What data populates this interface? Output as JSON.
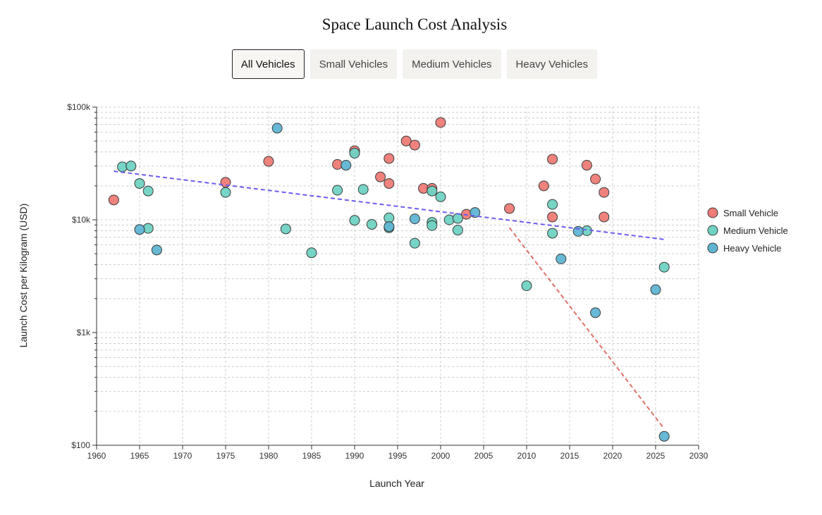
{
  "title": "Space Launch Cost Analysis",
  "filters": [
    {
      "label": "All Vehicles",
      "active": true
    },
    {
      "label": "Small Vehicles",
      "active": false
    },
    {
      "label": "Medium Vehicles",
      "active": false
    },
    {
      "label": "Heavy Vehicles",
      "active": false
    }
  ],
  "colors": {
    "small": "#ee7b76",
    "medium": "#6fd3c3",
    "heavy": "#5fb5d3",
    "trend_all": "#6b5cf0",
    "trend_small": "#e07068",
    "grid": "#cccccc",
    "point_stroke": "#3a3a3a"
  },
  "chart_data": {
    "type": "scatter",
    "title": "Space Launch Cost Analysis",
    "xlabel": "Launch Year",
    "ylabel": "Launch Cost per Kilogram (USD)",
    "xlim": [
      1960,
      2030
    ],
    "ylim": [
      100,
      100000
    ],
    "yscale": "log",
    "xticks": [
      1960,
      1965,
      1970,
      1975,
      1980,
      1985,
      1990,
      1995,
      2000,
      2005,
      2010,
      2015,
      2020,
      2025,
      2030
    ],
    "yticks": [
      {
        "value": 100,
        "label": "$100"
      },
      {
        "value": 1000,
        "label": "$1k"
      },
      {
        "value": 10000,
        "label": "$10k"
      },
      {
        "value": 100000,
        "label": "$100k"
      }
    ],
    "legend_position": "right",
    "series": [
      {
        "name": "Small Vehicle",
        "key": "small",
        "points": [
          [
            1962,
            15000
          ],
          [
            1975,
            21500
          ],
          [
            1980,
            33000
          ],
          [
            1988,
            31000
          ],
          [
            1990,
            41000
          ],
          [
            1993,
            24000
          ],
          [
            1994,
            35000
          ],
          [
            1994,
            21000
          ],
          [
            1996,
            50000
          ],
          [
            1997,
            46000
          ],
          [
            1998,
            19000
          ],
          [
            1999,
            19000
          ],
          [
            2000,
            73000
          ],
          [
            2003,
            11200
          ],
          [
            2008,
            12600
          ],
          [
            2012,
            20000
          ],
          [
            2013,
            34500
          ],
          [
            2013,
            10600
          ],
          [
            2017,
            30500
          ],
          [
            2018,
            23000
          ],
          [
            2019,
            17500
          ],
          [
            2019,
            10600
          ]
        ]
      },
      {
        "name": "Medium Vehicle",
        "key": "medium",
        "points": [
          [
            1963,
            29500
          ],
          [
            1964,
            30000
          ],
          [
            1965,
            21000
          ],
          [
            1966,
            18000
          ],
          [
            1966,
            8400
          ],
          [
            1975,
            17500
          ],
          [
            1982,
            8300
          ],
          [
            1985,
            5100
          ],
          [
            1988,
            18300
          ],
          [
            1990,
            39000
          ],
          [
            1990,
            9900
          ],
          [
            1991,
            18600
          ],
          [
            1992,
            9100
          ],
          [
            1994,
            10400
          ],
          [
            1994,
            8500
          ],
          [
            1997,
            6200
          ],
          [
            1999,
            18000
          ],
          [
            1999,
            9500
          ],
          [
            1999,
            8900
          ],
          [
            2000,
            16000
          ],
          [
            2001,
            10000
          ],
          [
            2002,
            10300
          ],
          [
            2002,
            8100
          ],
          [
            2010,
            2600
          ],
          [
            2013,
            13700
          ],
          [
            2013,
            7600
          ],
          [
            2017,
            8000
          ],
          [
            2026,
            3800
          ]
        ]
      },
      {
        "name": "Heavy Vehicle",
        "key": "heavy",
        "points": [
          [
            1965,
            8200
          ],
          [
            1967,
            5400
          ],
          [
            1981,
            65000
          ],
          [
            1989,
            30500
          ],
          [
            1994,
            8700
          ],
          [
            1997,
            10200
          ],
          [
            2004,
            11600
          ],
          [
            2014,
            4500
          ],
          [
            2016,
            7900
          ],
          [
            2018,
            1500
          ],
          [
            2025,
            2400
          ],
          [
            2026,
            120
          ]
        ]
      }
    ],
    "trendlines": [
      {
        "name": "All vehicles trend",
        "key": "trend_all",
        "from": [
          1962,
          27000
        ],
        "to": [
          2026,
          6700
        ]
      },
      {
        "name": "Small vehicle trend",
        "key": "trend_small",
        "from": [
          2008,
          8500
        ],
        "to": [
          2026,
          140
        ]
      }
    ]
  }
}
